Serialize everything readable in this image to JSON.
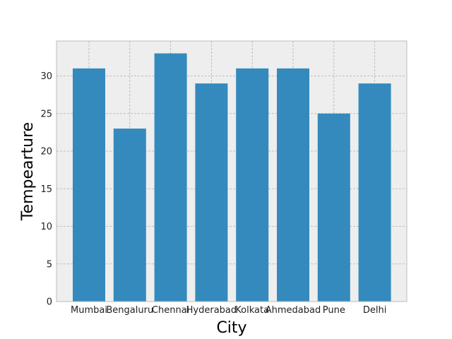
{
  "chart_data": {
    "type": "bar",
    "title": "",
    "xlabel": "City",
    "ylabel": "Tempearture",
    "categories": [
      "Mumbai",
      "Bengaluru",
      "Chennai",
      "Hyderabad",
      "Kolkata",
      "Ahmedabad",
      "Pune",
      "Delhi"
    ],
    "values": [
      31,
      23,
      33,
      29,
      31,
      31,
      25,
      29
    ],
    "ylim": [
      0,
      34.65
    ],
    "yticks": [
      0,
      5,
      10,
      15,
      20,
      25,
      30
    ],
    "grid": true,
    "bar_color": "#348abd",
    "plot_background": "#eeeeee",
    "frame_color": "#bcbcbc"
  }
}
